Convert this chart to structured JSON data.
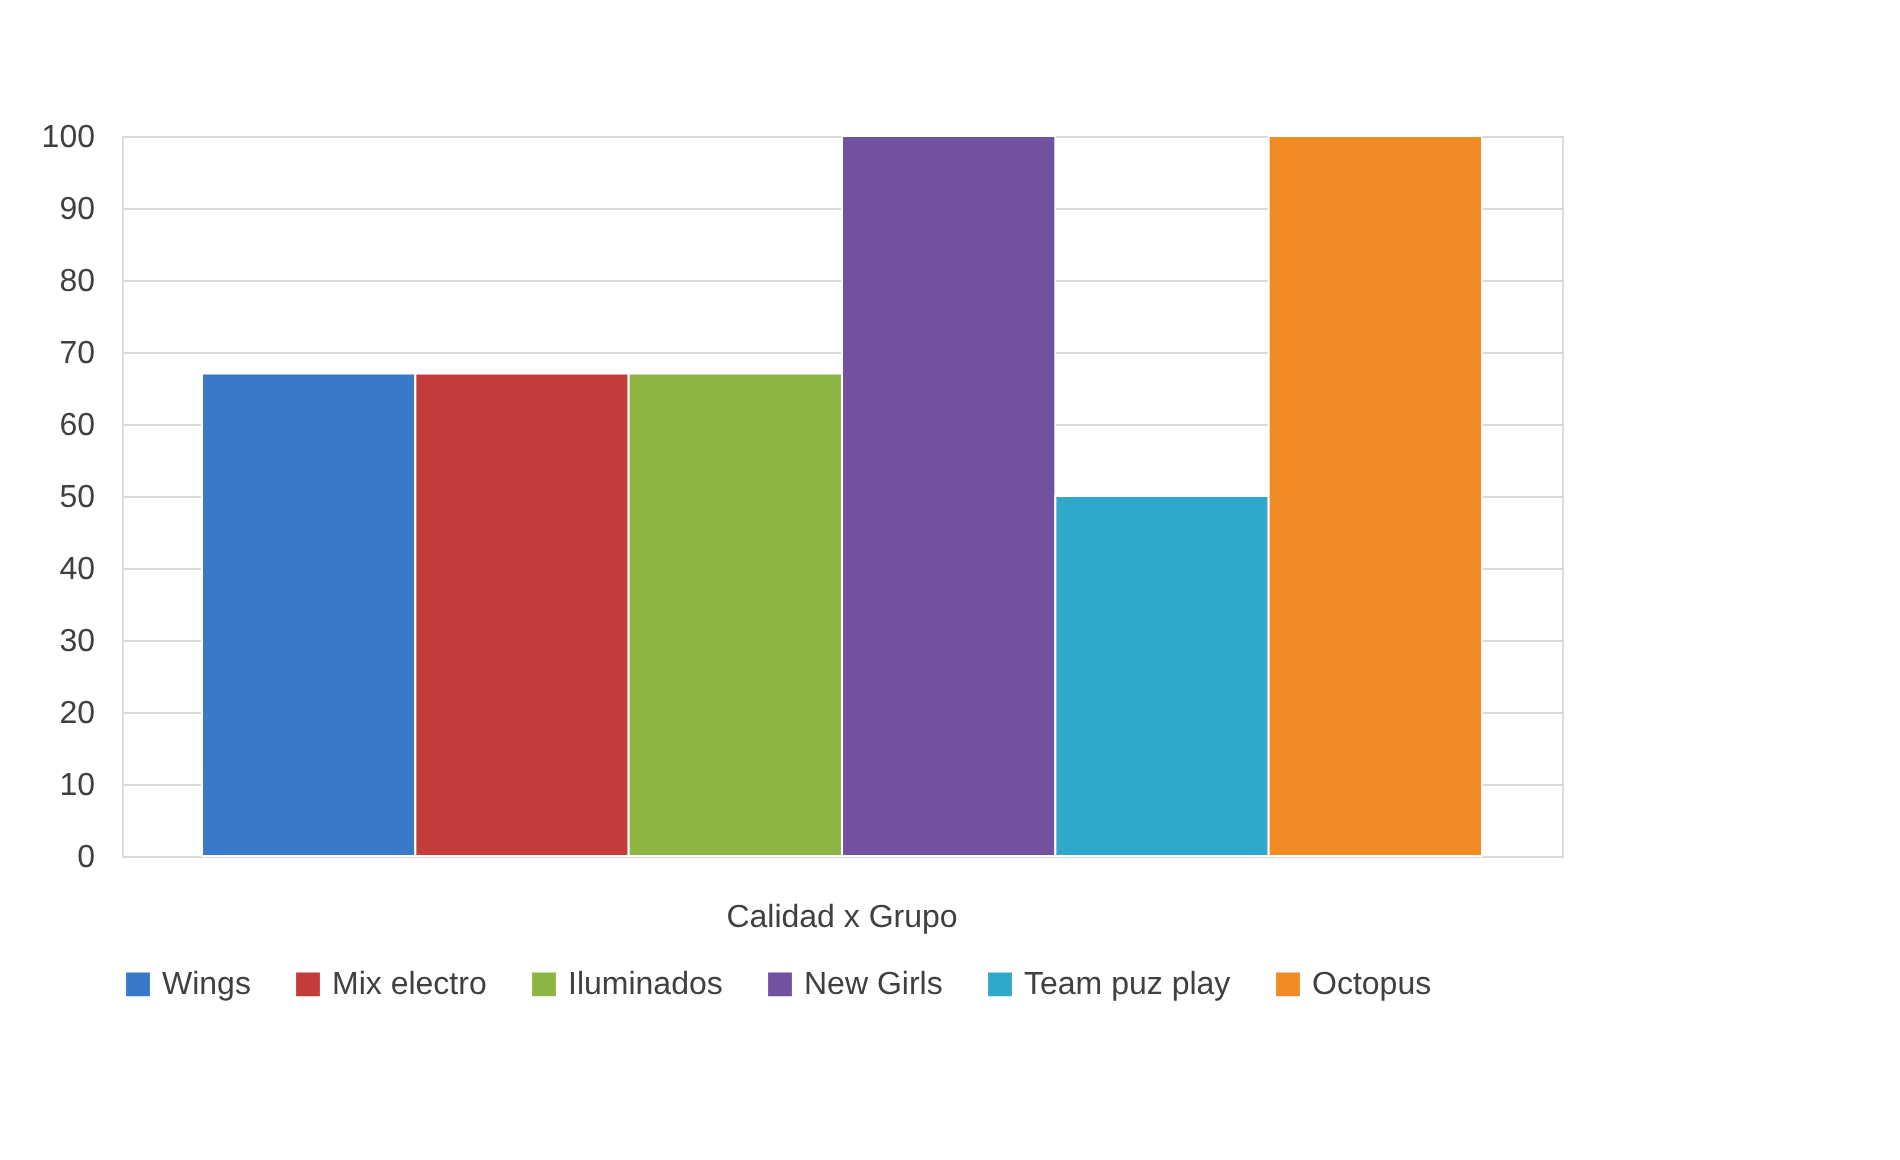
{
  "chart_data": {
    "type": "bar",
    "categories": [
      "Calidad x Grupo"
    ],
    "series": [
      {
        "name": "Wings",
        "color": "#3a78c8",
        "values": [
          67
        ]
      },
      {
        "name": "Mix electro",
        "color": "#c43c39",
        "values": [
          67
        ]
      },
      {
        "name": "Iluminados",
        "color": "#8db543",
        "values": [
          67
        ]
      },
      {
        "name": "New Girls",
        "color": "#7151a0",
        "values": [
          100
        ]
      },
      {
        "name": "Team puz play",
        "color": "#30a8cb",
        "values": [
          50
        ]
      },
      {
        "name": "Octopus",
        "color": "#f08a24",
        "values": [
          100
        ]
      }
    ],
    "ylim": [
      0,
      100
    ],
    "yticks": [
      0,
      10,
      20,
      30,
      40,
      50,
      60,
      70,
      80,
      90,
      100
    ],
    "grid": "y",
    "legend": "bottom"
  }
}
